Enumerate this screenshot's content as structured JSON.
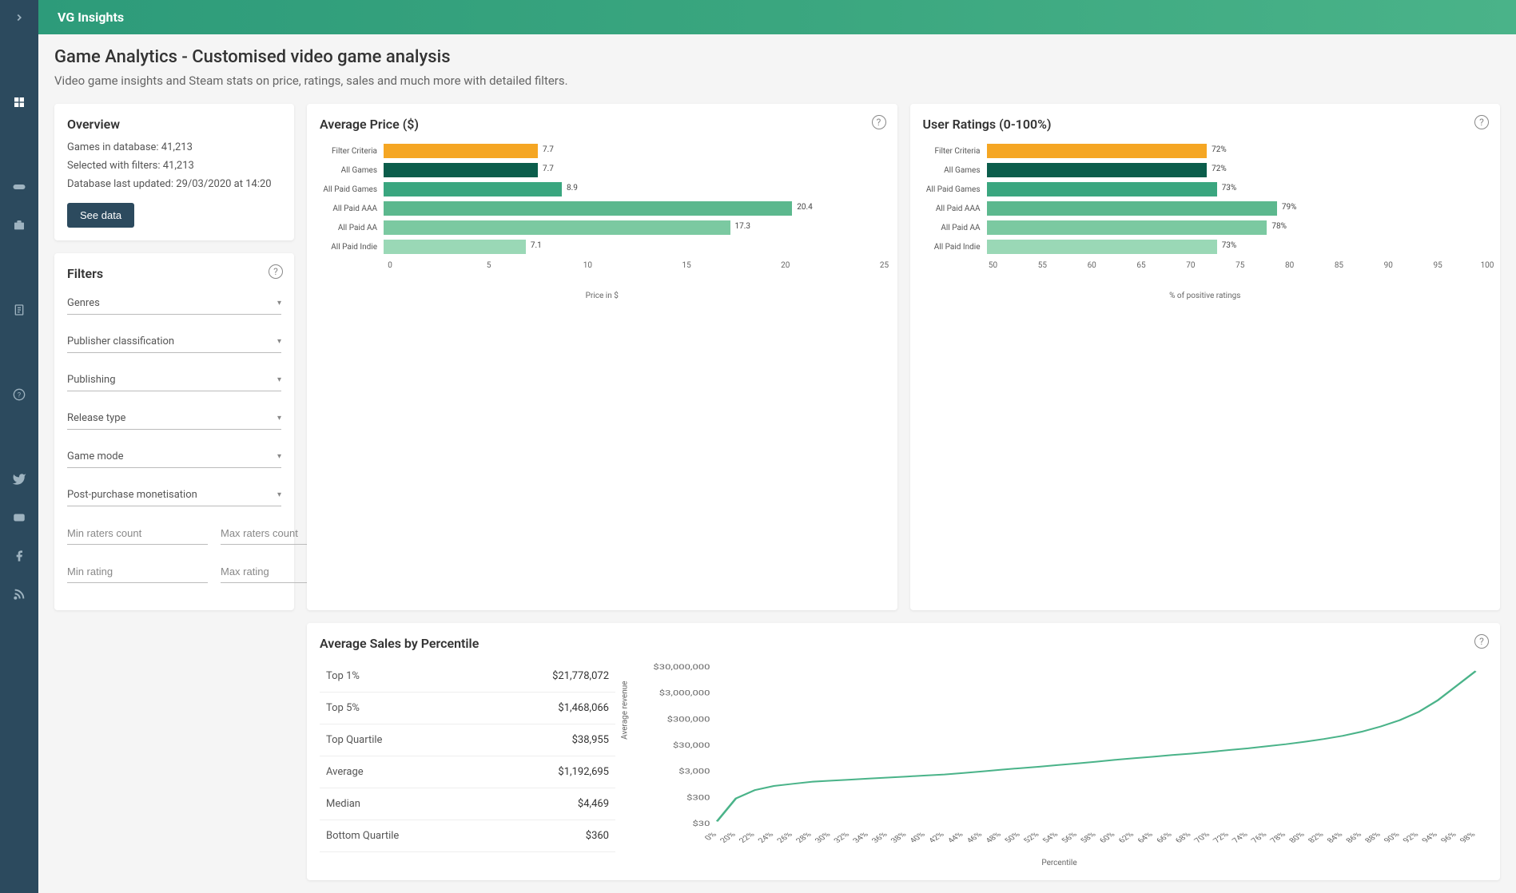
{
  "brand": "VG Insights",
  "page": {
    "title": "Game Analytics - Customised video game analysis",
    "subtitle": "Video game insights and Steam stats on price, ratings, sales and much more with detailed filters."
  },
  "overview": {
    "title": "Overview",
    "lines": {
      "db": "Games in database: 41,213",
      "selected": "Selected with filters: 41,213",
      "updated": "Database last updated: 29/03/2020 at 14:20"
    },
    "see_data": "See data"
  },
  "filters": {
    "title": "Filters",
    "selects": [
      "Genres",
      "Publisher classification",
      "Publishing",
      "Release type",
      "Game mode",
      "Post-purchase monetisation"
    ],
    "inputs": {
      "min_raters": "Min raters count",
      "max_raters": "Max raters count",
      "min_rating": "Min rating",
      "max_rating": "Max rating"
    }
  },
  "price_chart": {
    "title": "Average Price ($)",
    "axis_label": "Price in $",
    "xmax": 25,
    "ticks": [
      0,
      5,
      10,
      15,
      20,
      25
    ],
    "bars": [
      {
        "label": "Filter Criteria",
        "value": 7.7,
        "text": "7.7",
        "color": "#f5a623"
      },
      {
        "label": "All Games",
        "value": 7.7,
        "text": "7.7",
        "color": "#0b5d4b"
      },
      {
        "label": "All Paid Games",
        "value": 8.9,
        "text": "8.9",
        "color": "#3aa67f"
      },
      {
        "label": "All Paid AAA",
        "value": 20.4,
        "text": "20.4",
        "color": "#5cb88e"
      },
      {
        "label": "All Paid AA",
        "value": 17.3,
        "text": "17.3",
        "color": "#7bc9a1"
      },
      {
        "label": "All Paid Indie",
        "value": 7.1,
        "text": "7.1",
        "color": "#9ad8b6"
      }
    ]
  },
  "ratings_chart": {
    "title": "User Ratings (0-100%)",
    "axis_label": "% of positive ratings",
    "xmin": 50,
    "xmax": 100,
    "ticks": [
      50,
      55,
      60,
      65,
      70,
      75,
      80,
      85,
      90,
      95,
      100
    ],
    "bars": [
      {
        "label": "Filter Criteria",
        "value": 72,
        "text": "72%",
        "color": "#f5a623"
      },
      {
        "label": "All Games",
        "value": 72,
        "text": "72%",
        "color": "#0b5d4b"
      },
      {
        "label": "All Paid Games",
        "value": 73,
        "text": "73%",
        "color": "#3aa67f"
      },
      {
        "label": "All Paid AAA",
        "value": 79,
        "text": "79%",
        "color": "#5cb88e"
      },
      {
        "label": "All Paid AA",
        "value": 78,
        "text": "78%",
        "color": "#7bc9a1"
      },
      {
        "label": "All Paid Indie",
        "value": 73,
        "text": "73%",
        "color": "#9ad8b6"
      }
    ]
  },
  "sales": {
    "title": "Average Sales by Percentile",
    "rows": [
      {
        "k": "Top 1%",
        "v": "$21,778,072"
      },
      {
        "k": "Top 5%",
        "v": "$1,468,066"
      },
      {
        "k": "Top Quartile",
        "v": "$38,955"
      },
      {
        "k": "Average",
        "v": "$1,192,695"
      },
      {
        "k": "Median",
        "v": "$4,469"
      },
      {
        "k": "Bottom Quartile",
        "v": "$360"
      }
    ],
    "line": {
      "y_label": "Average revenue",
      "x_label": "Percentile",
      "y_ticks": [
        "$30,000,000",
        "$3,000,000",
        "$300,000",
        "$30,000",
        "$3,000",
        "$300",
        "$30"
      ],
      "x_ticks": [
        "0%",
        "20%",
        "22%",
        "24%",
        "26%",
        "28%",
        "30%",
        "32%",
        "34%",
        "36%",
        "38%",
        "40%",
        "42%",
        "44%",
        "46%",
        "48%",
        "50%",
        "52%",
        "54%",
        "56%",
        "58%",
        "60%",
        "62%",
        "64%",
        "66%",
        "68%",
        "70%",
        "72%",
        "74%",
        "76%",
        "78%",
        "80%",
        "82%",
        "84%",
        "86%",
        "88%",
        "90%",
        "92%",
        "94%",
        "96%",
        "98%"
      ],
      "color": "#4ab389",
      "points_log": [
        0.1,
        1.2,
        1.6,
        1.8,
        1.9,
        2.0,
        2.05,
        2.1,
        2.15,
        2.2,
        2.25,
        2.3,
        2.35,
        2.42,
        2.5,
        2.58,
        2.65,
        2.72,
        2.8,
        2.88,
        2.96,
        3.05,
        3.13,
        3.2,
        3.28,
        3.35,
        3.43,
        3.52,
        3.6,
        3.7,
        3.8,
        3.92,
        4.05,
        4.2,
        4.4,
        4.65,
        4.95,
        5.35,
        5.9,
        6.6,
        7.3
      ],
      "ymin_log": 0,
      "ymax_log": 7.5
    }
  },
  "colors": {
    "sidebar_bg": "#2c4a5e",
    "topbar_grad_from": "#2d9b7a",
    "topbar_grad_to": "#4ab389"
  }
}
